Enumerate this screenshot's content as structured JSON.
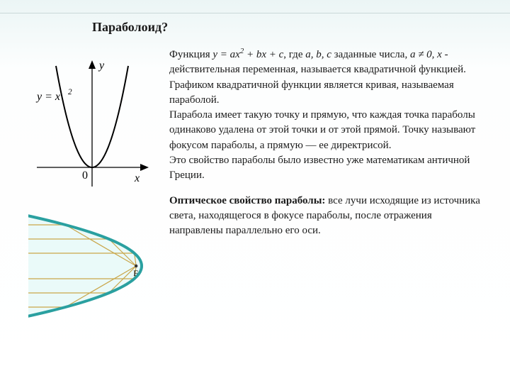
{
  "title": "Параболоид?",
  "graph": {
    "formula_label": "y = x²",
    "y_label": "y",
    "x_label": "x",
    "origin_label": "0",
    "parabola_coef": 0.055,
    "xlim": [
      -60,
      60
    ],
    "ylim": [
      0,
      140
    ],
    "axis_color": "#000000",
    "curve_color": "#000000",
    "curve_width": 2.0,
    "font_size": 16,
    "font_style": "italic"
  },
  "optics": {
    "focus_label": "F",
    "parabola_color": "#2aa0a0",
    "parabola_fill": "#eafaf9",
    "ray_color": "#c9a64a",
    "ray_width": 1.2,
    "parabola_width": 4,
    "font_size": 12,
    "rays_y": [
      -58,
      -38,
      -18,
      18,
      38,
      58
    ],
    "focus_x": 35,
    "parabola_k": 0.032
  },
  "text": {
    "para1_a": "Функция ",
    "para1_formula": "y = ax² + bx + c",
    "para1_b": ", где ",
    "para1_vars": "a, b, c",
    "para1_c": " заданные числа, ",
    "para1_cond": "a ≠ 0, x",
    "para1_d": " - действительная переменная, называется квадратичной функцией. Графиком квадратичной функции является кривая, называемая параболой.",
    "para2": "Парабола имеет такую точку и прямую, что каждая точка параболы одинаково удалена от этой точки и от этой прямой. Точку называют фокусом параболы, а прямую — ее директрисой.",
    "para3": "Это свойство параболы было известно уже математикам античной Греции.",
    "para4_head": "Оптическое свойство параболы:",
    "para4_body": " все лучи исходящие из источника света, находящегося в фокусе параболы, после отражения направлены параллельно его оси."
  }
}
